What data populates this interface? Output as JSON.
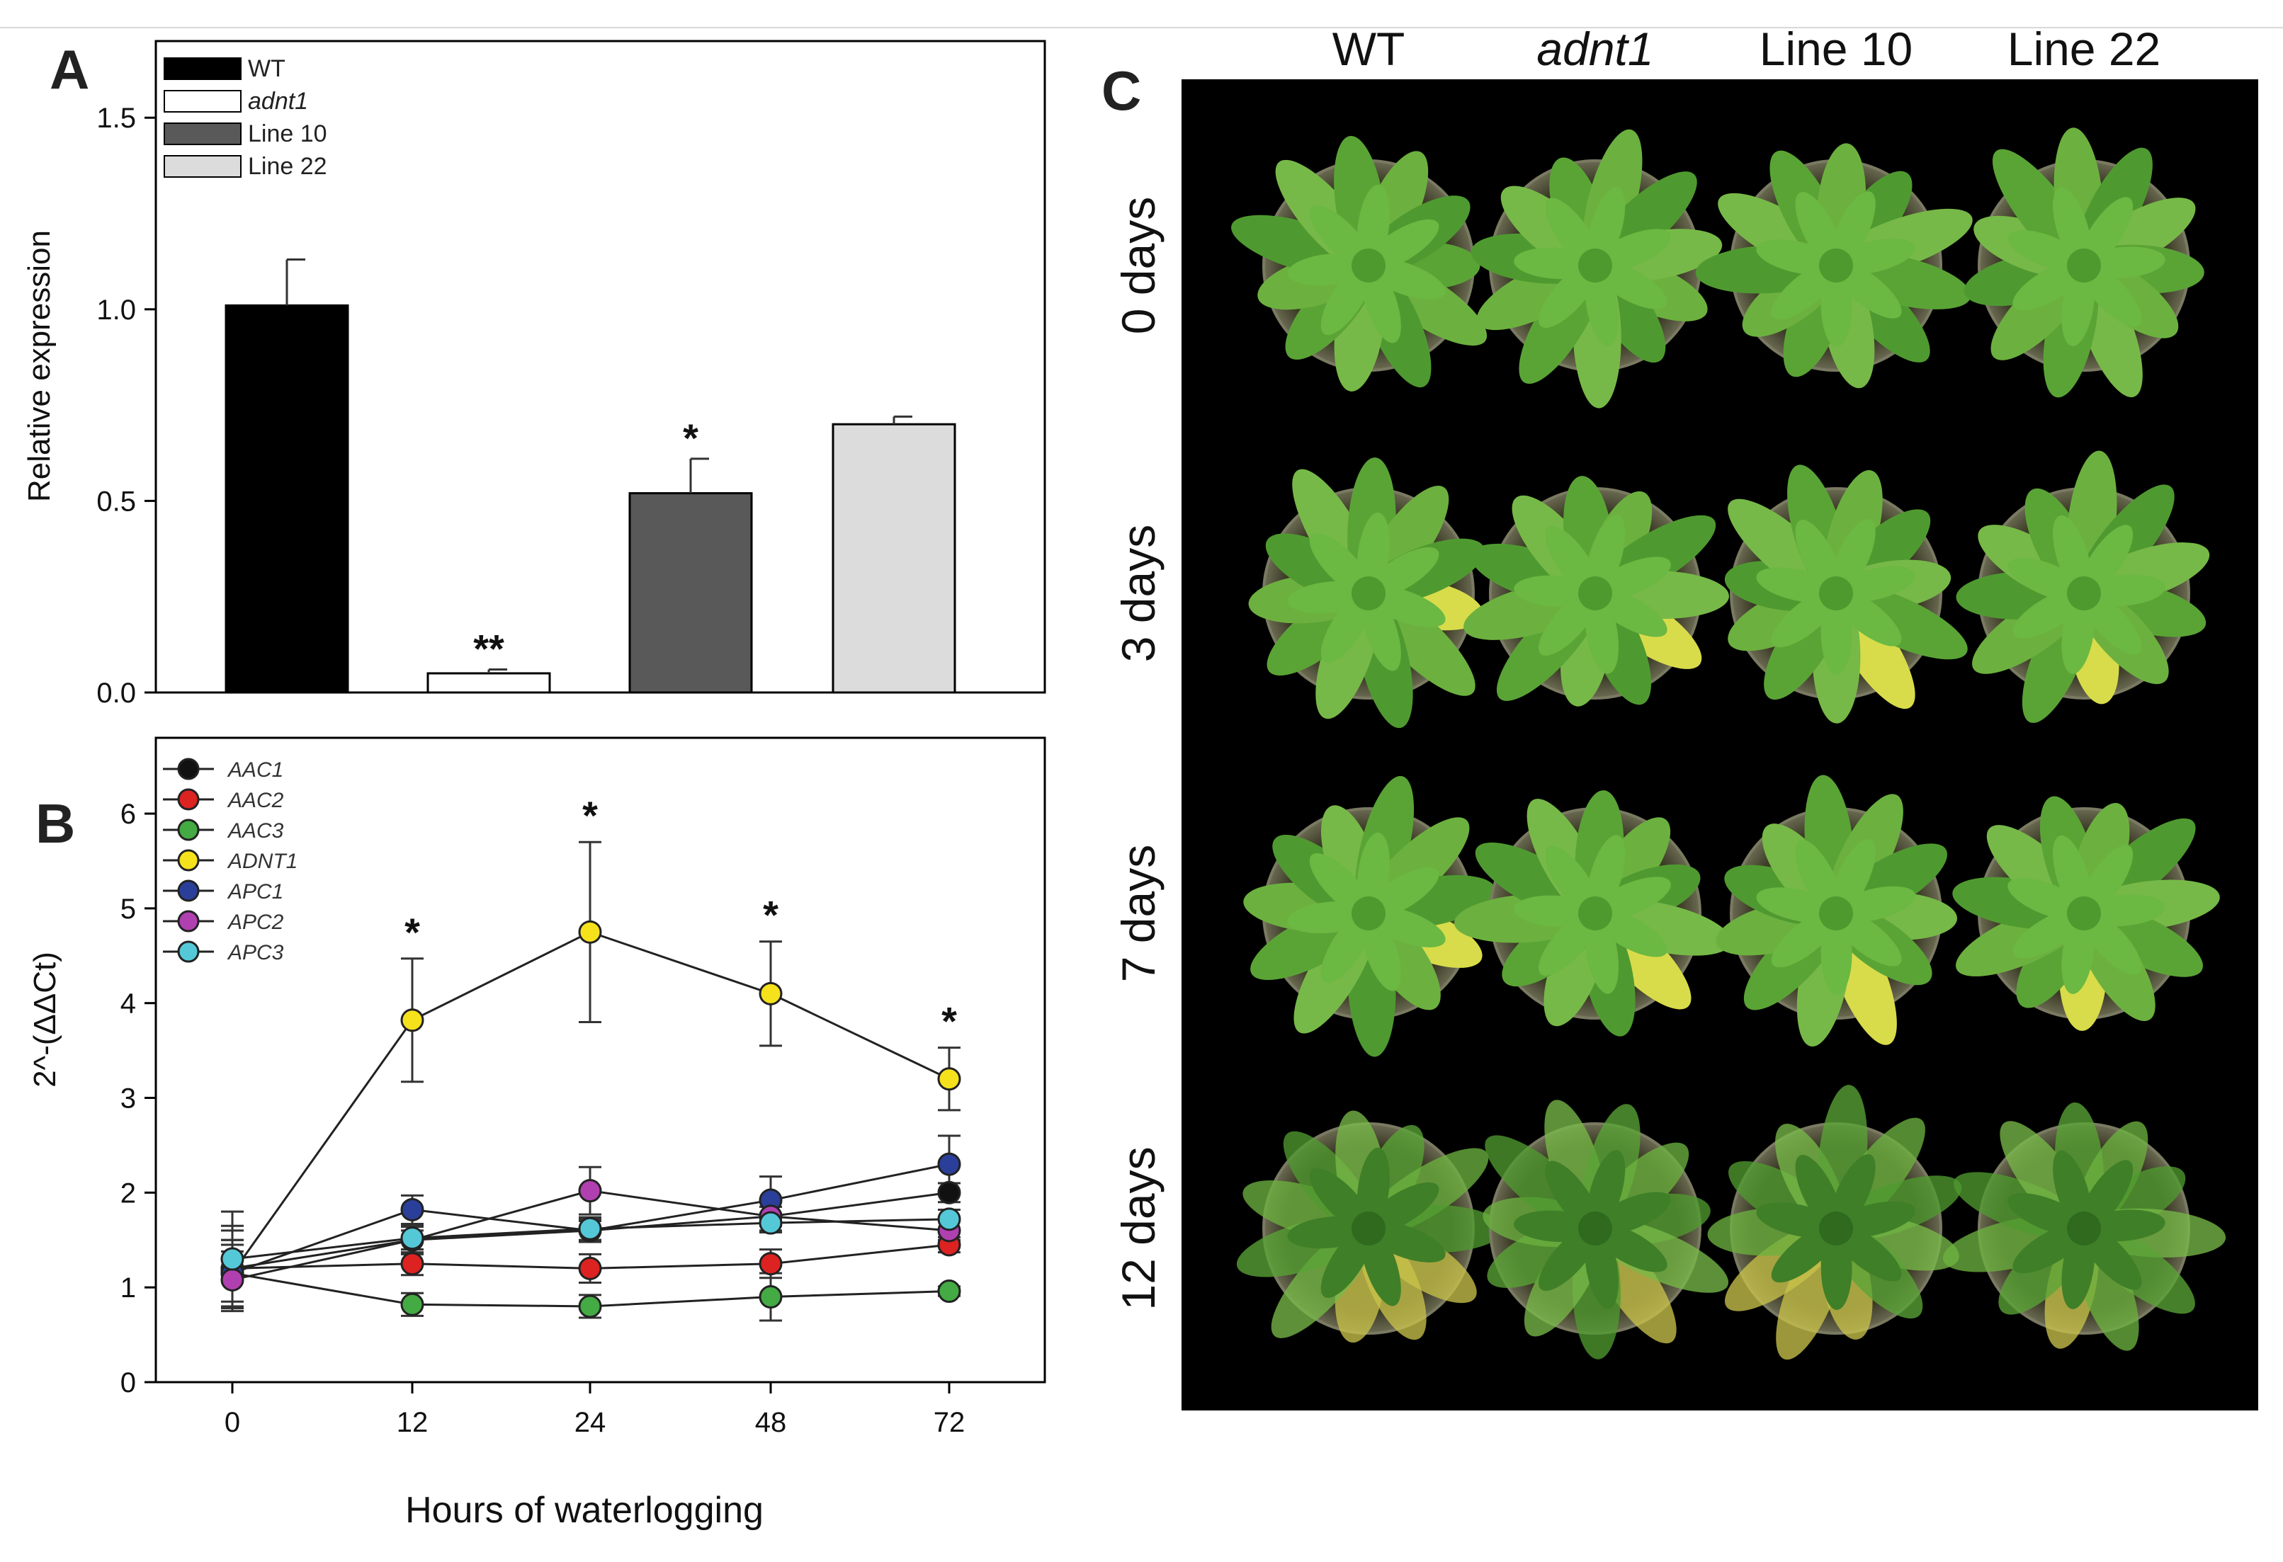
{
  "chart_data": [
    {
      "panel": "A",
      "type": "bar",
      "categories": [
        "WT",
        "adnt1",
        "Line 10",
        "Line 22"
      ],
      "values": [
        1.01,
        0.05,
        0.52,
        0.7
      ],
      "errors": [
        0.12,
        0.01,
        0.09,
        0.02
      ],
      "significance": [
        "",
        "**",
        "*",
        ""
      ],
      "colors": [
        "#000000",
        "#ffffff",
        "#595959",
        "#dcdcdc"
      ],
      "legend": [
        {
          "label": "WT",
          "italic": false
        },
        {
          "label": "adnt1",
          "italic": true
        },
        {
          "label": "Line 10",
          "italic": false
        },
        {
          "label": "Line 22",
          "italic": false
        }
      ],
      "ylabel": "Relative expression",
      "xlabel": "",
      "ylim": [
        0,
        1.7
      ],
      "yticks": [
        "0.0",
        "0.5",
        "1.0",
        "1.5"
      ],
      "ytick_values": [
        0,
        0.5,
        1.0,
        1.5
      ]
    },
    {
      "panel": "B",
      "type": "line",
      "x": [
        "0",
        "12",
        "24",
        "48",
        "72"
      ],
      "ylabel": "2^-(ΔΔCt)",
      "xlabel": "Hours of waterlogging",
      "ylim": [
        0,
        6.8
      ],
      "yticks": [
        "0",
        "1",
        "2",
        "3",
        "4",
        "5",
        "6"
      ],
      "ytick_values": [
        0,
        1,
        2,
        3,
        4,
        5,
        6
      ],
      "significance": [
        "",
        "*",
        "*",
        "*",
        "*"
      ],
      "series": [
        {
          "name": "AAC1",
          "color": "#111111",
          "values": [
            1.2,
            1.5,
            1.6,
            1.75,
            2.0
          ],
          "errors": [
            0.45,
            0.1,
            0.1,
            0.15,
            0.1
          ]
        },
        {
          "name": "AAC2",
          "color": "#dd2222",
          "values": [
            1.2,
            1.25,
            1.2,
            1.25,
            1.45
          ],
          "errors": [
            0.4,
            0.12,
            0.15,
            0.15,
            0.08
          ]
        },
        {
          "name": "AAC3",
          "color": "#44aa44",
          "values": [
            1.15,
            0.82,
            0.8,
            0.9,
            0.96
          ],
          "errors": [
            0.35,
            0.12,
            0.12,
            0.25,
            0.05
          ]
        },
        {
          "name": "ADNT1",
          "color": "#f5e21c",
          "values": [
            1.15,
            3.82,
            4.75,
            4.1,
            3.2
          ],
          "errors": [
            0.3,
            0.65,
            0.95,
            0.55,
            0.33
          ]
        },
        {
          "name": "APC1",
          "color": "#2a3f99",
          "values": [
            1.15,
            1.82,
            1.6,
            1.92,
            2.3
          ],
          "errors": [
            0.35,
            0.15,
            0.12,
            0.25,
            0.3
          ]
        },
        {
          "name": "APC2",
          "color": "#b040b0",
          "values": [
            1.08,
            1.5,
            2.02,
            1.75,
            1.6
          ],
          "errors": [
            0.3,
            0.15,
            0.25,
            0.1,
            0.1
          ]
        },
        {
          "name": "APC3",
          "color": "#55c8d8",
          "values": [
            1.3,
            1.52,
            1.62,
            1.68,
            1.72
          ],
          "errors": [
            0.5,
            0.12,
            0.12,
            0.1,
            0.1
          ]
        }
      ]
    }
  ],
  "panels": {
    "a_label": "A",
    "b_label": "B",
    "c_label": "C"
  },
  "photo": {
    "columns": [
      "WT",
      "adnt1",
      "Line 10",
      "Line 22"
    ],
    "rows": [
      "0 days",
      "3 days",
      "7 days",
      "12 days"
    ]
  }
}
